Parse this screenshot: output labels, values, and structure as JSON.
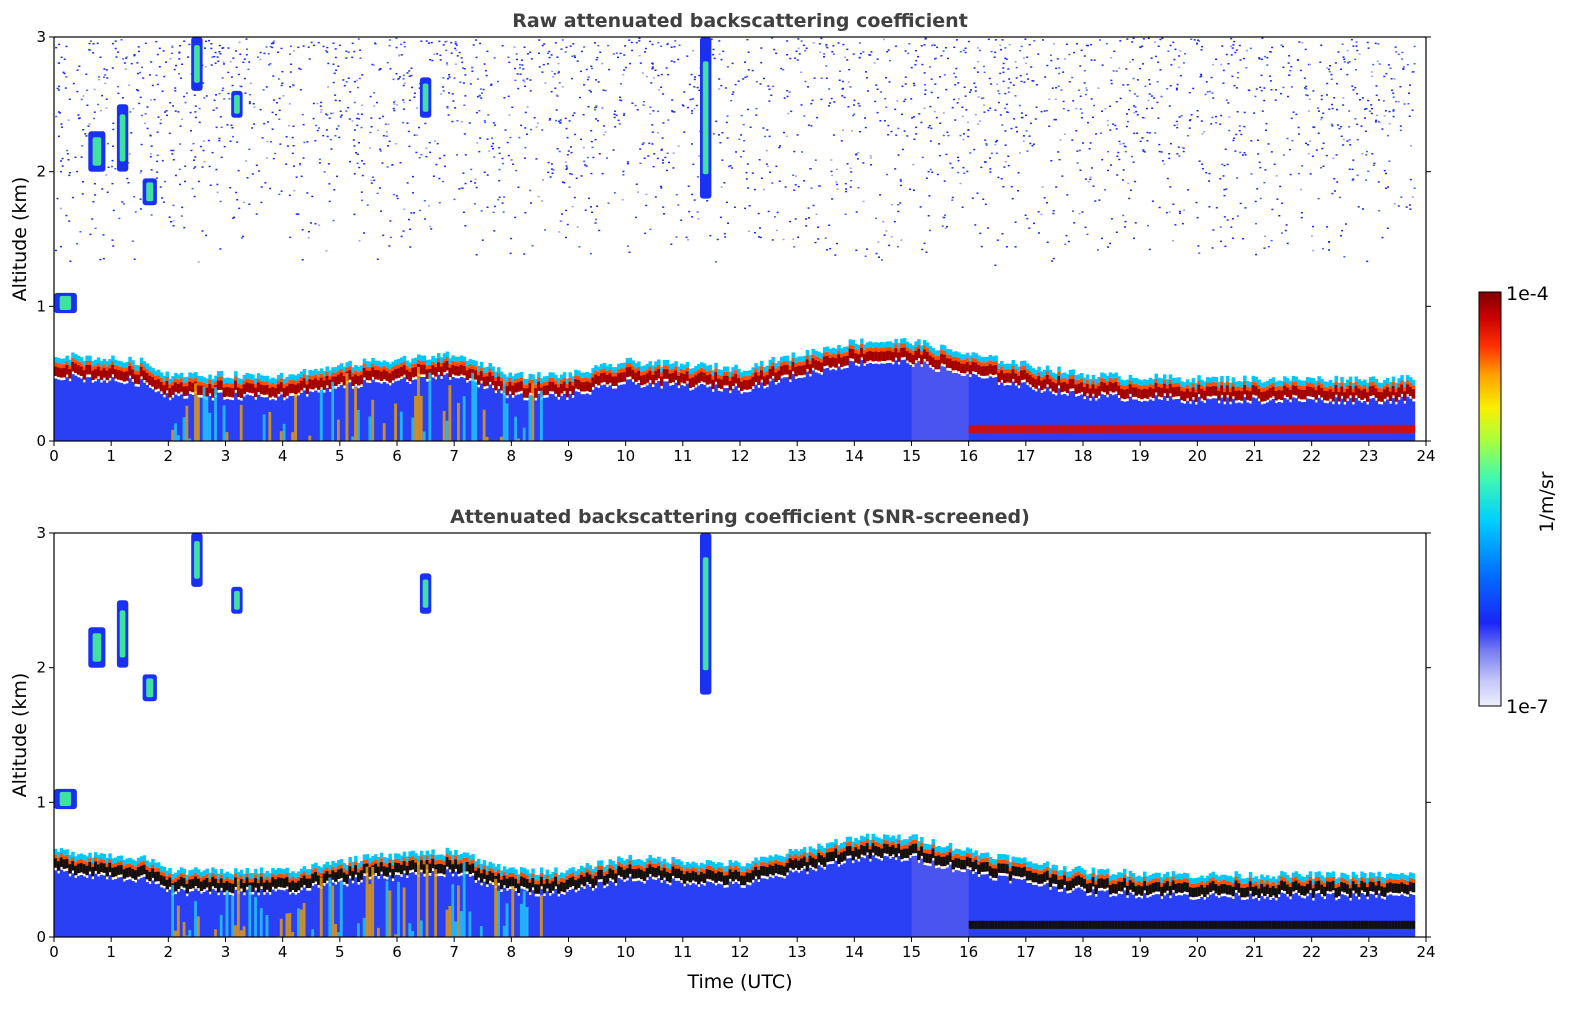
{
  "chart_data": [
    {
      "type": "heatmap",
      "title": "Raw attenuated backscattering coefficient",
      "xlabel": "",
      "ylabel": "Altitude (km)",
      "xlim": [
        0,
        24
      ],
      "ylim": [
        0,
        3
      ],
      "xticks": [
        "0",
        "1",
        "2",
        "3",
        "4",
        "5",
        "6",
        "7",
        "8",
        "9",
        "10",
        "11",
        "12",
        "13",
        "14",
        "15",
        "16",
        "17",
        "18",
        "19",
        "20",
        "21",
        "22",
        "23",
        "24"
      ],
      "yticks": [
        "0",
        "1",
        "2",
        "3"
      ],
      "data_end_hour": 23.8,
      "boundary_layer_top_km": [
        {
          "t": 0,
          "km": 0.6
        },
        {
          "t": 1.5,
          "km": 0.55
        },
        {
          "t": 2,
          "km": 0.45
        },
        {
          "t": 4,
          "km": 0.45
        },
        {
          "t": 5.5,
          "km": 0.55
        },
        {
          "t": 7,
          "km": 0.6
        },
        {
          "t": 8,
          "km": 0.45
        },
        {
          "t": 9,
          "km": 0.45
        },
        {
          "t": 10,
          "km": 0.55
        },
        {
          "t": 12,
          "km": 0.5
        },
        {
          "t": 13,
          "km": 0.6
        },
        {
          "t": 14,
          "km": 0.7
        },
        {
          "t": 15,
          "km": 0.7
        },
        {
          "t": 16,
          "km": 0.6
        },
        {
          "t": 18,
          "km": 0.45
        },
        {
          "t": 20,
          "km": 0.42
        },
        {
          "t": 23.8,
          "km": 0.42
        }
      ],
      "clouds": [
        {
          "t0": 0.0,
          "t1": 0.4,
          "km0": 0.95,
          "km1": 1.1
        },
        {
          "t0": 0.6,
          "t1": 0.9,
          "km0": 2.0,
          "km1": 2.3
        },
        {
          "t0": 1.1,
          "t1": 1.3,
          "km0": 2.0,
          "km1": 2.5
        },
        {
          "t0": 1.55,
          "t1": 1.8,
          "km0": 1.75,
          "km1": 1.95
        },
        {
          "t0": 2.4,
          "t1": 2.6,
          "km0": 2.6,
          "km1": 3.0
        },
        {
          "t0": 3.1,
          "t1": 3.3,
          "km0": 2.4,
          "km1": 2.6
        },
        {
          "t0": 6.4,
          "t1": 6.6,
          "km0": 2.4,
          "km1": 2.7
        },
        {
          "t0": 11.3,
          "t1": 11.5,
          "km0": 1.8,
          "km1": 3.0
        }
      ]
    },
    {
      "type": "heatmap",
      "title": "Attenuated backscattering coefficient (SNR-screened)",
      "xlabel": "Time (UTC)",
      "ylabel": "Altitude (km)",
      "xlim": [
        0,
        24
      ],
      "ylim": [
        0,
        3
      ],
      "xticks": [
        "0",
        "1",
        "2",
        "3",
        "4",
        "5",
        "6",
        "7",
        "8",
        "9",
        "10",
        "11",
        "12",
        "13",
        "14",
        "15",
        "16",
        "17",
        "18",
        "19",
        "20",
        "21",
        "22",
        "23",
        "24"
      ],
      "yticks": [
        "0",
        "1",
        "2",
        "3"
      ],
      "data_end_hour": 23.8
    }
  ],
  "colorbar": {
    "label": "1/m/sr",
    "max_label": "1e-4",
    "min_label": "1e-7",
    "colors": [
      "#e8e8fb",
      "#c6c8f8",
      "#9ea0f3",
      "#5b5ff0",
      "#1f2af5",
      "#0050ff",
      "#0090ff",
      "#00d0ff",
      "#10f0d0",
      "#60ff90",
      "#b0ff40",
      "#f0f000",
      "#ffb000",
      "#ff6000",
      "#ff1000",
      "#c00000",
      "#800000"
    ]
  }
}
